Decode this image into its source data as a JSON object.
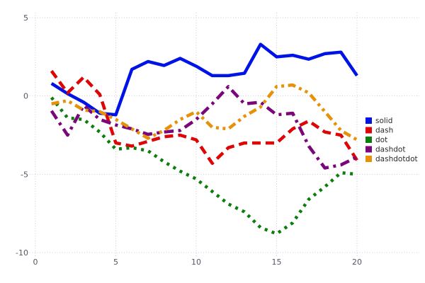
{
  "chart_data": {
    "type": "line",
    "title": "",
    "xlabel": "",
    "ylabel": "",
    "xlim": [
      0,
      24
    ],
    "ylim": [
      -10,
      5
    ],
    "x_ticks": [
      0,
      5,
      10,
      15,
      20
    ],
    "y_ticks": [
      5,
      0,
      -5,
      -10
    ],
    "grid": "dotted",
    "legend_position": "right",
    "x": [
      1,
      2,
      3,
      4,
      5,
      6,
      7,
      8,
      9,
      10,
      11,
      12,
      13,
      14,
      15,
      16,
      17,
      18,
      19,
      20
    ],
    "series": [
      {
        "name": "solid",
        "line_style": "solid",
        "color": "#0013e6",
        "values": [
          0.8,
          0.15,
          -0.4,
          -1.1,
          -1.2,
          1.7,
          2.2,
          1.95,
          2.4,
          1.9,
          1.3,
          1.3,
          1.45,
          3.3,
          2.5,
          2.6,
          2.35,
          2.7,
          2.8,
          1.3
        ]
      },
      {
        "name": "dash",
        "line_style": "dash",
        "color": "#dd0505",
        "values": [
          1.6,
          0.2,
          1.2,
          0.1,
          -3.0,
          -3.2,
          -2.9,
          -2.6,
          -2.5,
          -2.8,
          -4.3,
          -3.3,
          -3.0,
          -3.0,
          -3.0,
          -2.1,
          -1.6,
          -2.3,
          -2.5,
          -4.1
        ]
      },
      {
        "name": "dot",
        "line_style": "dot",
        "color": "#0b7d0b",
        "values": [
          -0.1,
          -1.4,
          -1.5,
          -2.3,
          -3.4,
          -3.3,
          -3.5,
          -4.2,
          -4.8,
          -5.3,
          -6.1,
          -6.9,
          -7.4,
          -8.4,
          -8.8,
          -8.1,
          -6.6,
          -5.8,
          -4.9,
          -5.0
        ]
      },
      {
        "name": "dashdot",
        "line_style": "dashdot",
        "color": "#7a067a",
        "values": [
          -0.95,
          -2.5,
          -0.6,
          -1.5,
          -1.85,
          -2.1,
          -2.45,
          -2.3,
          -2.2,
          -1.5,
          -0.5,
          0.6,
          -0.5,
          -0.4,
          -1.2,
          -1.1,
          -3.2,
          -4.6,
          -4.4,
          -3.9
        ]
      },
      {
        "name": "dashdotdot",
        "line_style": "dashdotdot",
        "color": "#e69108",
        "values": [
          -0.5,
          -0.3,
          -0.9,
          -1.0,
          -1.5,
          -2.1,
          -2.7,
          -2.2,
          -1.5,
          -1.0,
          -2.0,
          -2.1,
          -1.3,
          -0.7,
          0.6,
          0.7,
          0.2,
          -1.0,
          -2.2,
          -2.8
        ]
      }
    ],
    "legend": [
      "solid",
      "dash",
      "dot",
      "dashdot",
      "dashdotdot"
    ],
    "grid_color": "#ccccdd",
    "tick_label_color": "#565663"
  }
}
